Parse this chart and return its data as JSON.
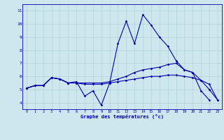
{
  "xlabel": "Graphe des températures (°c)",
  "xlim": [
    -0.5,
    23.5
  ],
  "ylim": [
    3.5,
    11.5
  ],
  "yticks": [
    4,
    5,
    6,
    7,
    8,
    9,
    10,
    11
  ],
  "xticks": [
    0,
    1,
    2,
    3,
    4,
    5,
    6,
    7,
    8,
    9,
    10,
    11,
    12,
    13,
    14,
    15,
    16,
    17,
    18,
    19,
    20,
    21,
    22,
    23
  ],
  "bg_color": "#cce8ee",
  "line_color": "#0000aa",
  "grid_color": "#aacccc",
  "markersize": 1.8,
  "linewidth": 0.8,
  "series0_x": [
    0,
    1,
    2,
    3,
    4,
    5,
    6,
    7,
    8,
    9,
    10,
    11,
    12,
    13,
    14,
    15,
    16,
    17,
    18,
    19,
    20,
    21,
    22
  ],
  "series0_y": [
    5.1,
    5.3,
    5.3,
    5.9,
    5.8,
    5.5,
    5.6,
    4.5,
    4.9,
    3.8,
    5.5,
    8.5,
    10.2,
    8.5,
    10.7,
    9.9,
    9.0,
    8.3,
    7.2,
    6.5,
    6.3,
    4.9,
    4.2
  ],
  "series1_x": [
    0,
    1,
    2,
    3,
    4,
    5,
    6,
    7,
    8,
    9,
    10,
    11,
    12,
    13,
    14,
    15,
    16,
    17,
    18,
    19,
    20,
    21,
    22,
    23
  ],
  "series1_y": [
    5.1,
    5.3,
    5.3,
    5.9,
    5.8,
    5.5,
    5.5,
    5.5,
    5.5,
    5.5,
    5.6,
    5.8,
    6.0,
    6.3,
    6.5,
    6.6,
    6.7,
    6.9,
    7.0,
    6.5,
    6.3,
    5.7,
    5.0,
    4.2
  ],
  "series2_x": [
    0,
    1,
    2,
    3,
    4,
    5,
    6,
    7,
    8,
    9,
    10,
    11,
    12,
    13,
    14,
    15,
    16,
    17,
    18,
    19,
    20,
    21,
    22,
    23
  ],
  "series2_y": [
    5.1,
    5.3,
    5.3,
    5.9,
    5.8,
    5.5,
    5.5,
    5.4,
    5.4,
    5.4,
    5.5,
    5.6,
    5.7,
    5.8,
    5.9,
    6.0,
    6.0,
    6.1,
    6.1,
    6.0,
    5.9,
    5.7,
    5.4,
    4.2
  ]
}
